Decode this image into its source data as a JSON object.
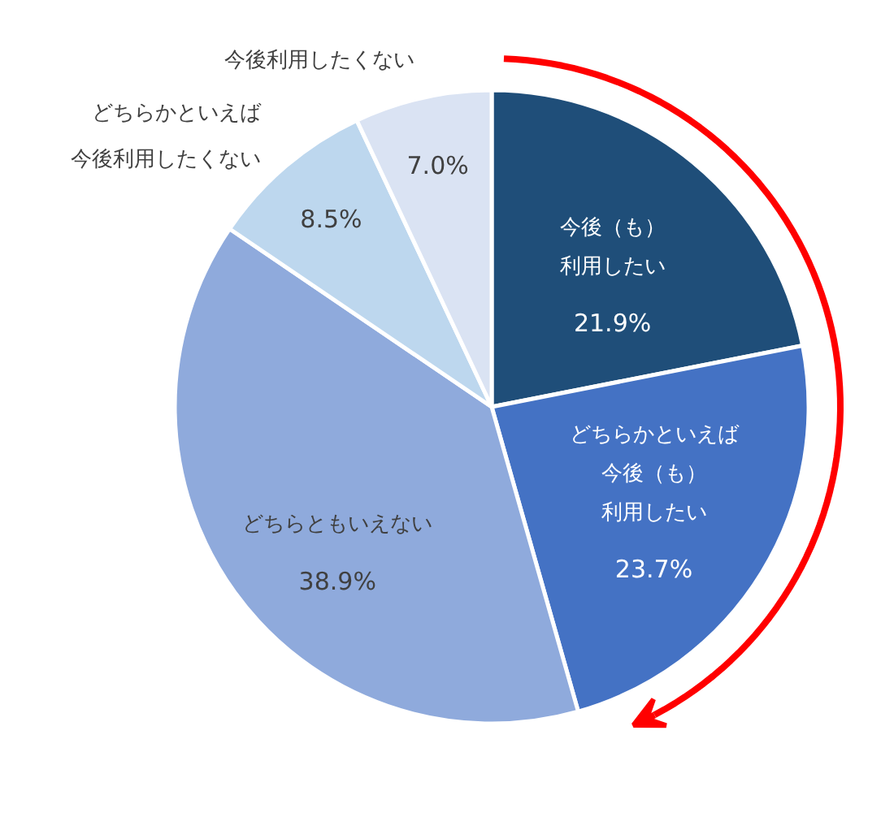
{
  "chart_data": {
    "type": "pie",
    "categories": [
      "今後（も）利用したい",
      "どちらかといえば今後（も）利用したい",
      "どちらともいえない",
      "どちらかといえば今後利用したくない",
      "今後利用したくない"
    ],
    "values": [
      21.9,
      23.7,
      38.9,
      8.5,
      7.0
    ],
    "colors": [
      "#1f4e79",
      "#4472c4",
      "#8faadc",
      "#bdd7ee",
      "#dae3f3"
    ],
    "value_labels": [
      "21.9%",
      "23.7%",
      "38.9%",
      "8.5%",
      "7.0%"
    ]
  }
}
